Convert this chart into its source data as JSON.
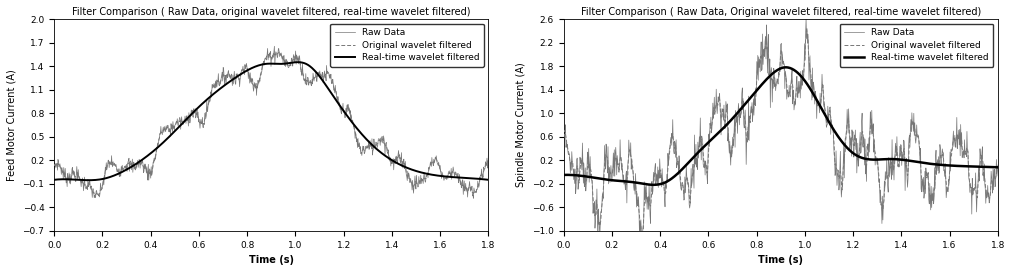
{
  "title1": "Filter Comparison ( Raw Data, original wavelet filtered, real-time wavelet filtered)",
  "title2": "Filter Comparison ( Raw Data, Original wavelet filtered, real-time wavelet filtered)",
  "ylabel1": "Feed Motor Current (A)",
  "ylabel2": "Spindle Motor Current (A)",
  "xlabel": "Time (s)",
  "xlim": [
    0,
    1.8
  ],
  "ylim1": [
    -0.7,
    2.0
  ],
  "ylim2": [
    -1.0,
    2.6
  ],
  "yticks1": [
    -0.7,
    -0.4,
    -0.1,
    0.2,
    0.5,
    0.8,
    1.1,
    1.4,
    1.7,
    2.0
  ],
  "yticks2": [
    -1.0,
    -0.6,
    -0.2,
    0.2,
    0.6,
    1.0,
    1.4,
    1.8,
    2.2,
    2.6
  ],
  "xticks": [
    0,
    0.2,
    0.4,
    0.6,
    0.8,
    1.0,
    1.2,
    1.4,
    1.6,
    1.8
  ],
  "legend_labels": [
    "Raw Data",
    "Original wavelet filtered",
    "Real-time wavelet filtered"
  ],
  "raw_color": "#777777",
  "filtered_color": "#777777",
  "realtime_color": "#000000",
  "title_fontsize": 7.0,
  "label_fontsize": 7,
  "tick_fontsize": 6.5,
  "legend_fontsize": 6.5
}
